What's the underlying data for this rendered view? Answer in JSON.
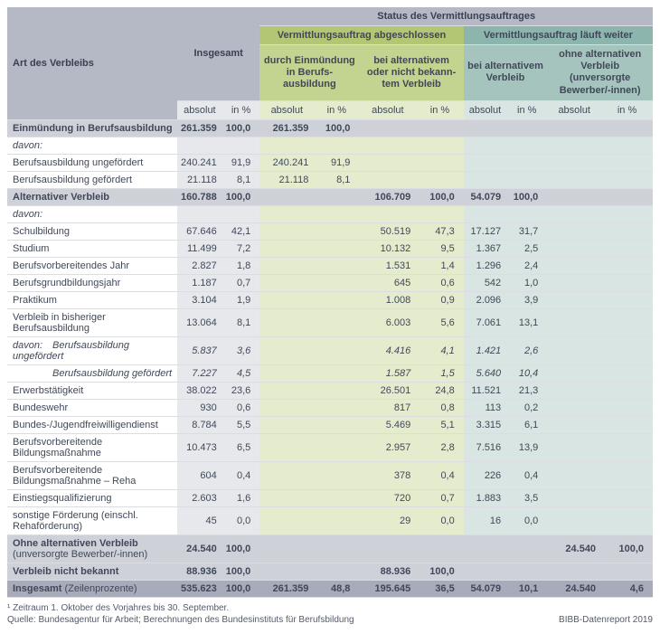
{
  "colors": {
    "gray_head": "#b5b8c5",
    "gray_sub": "#e7e8ec",
    "green_head": "#b2c674",
    "green_sub": "#c3d390",
    "green_cell": "#e5ecce",
    "teal_head": "#8cb5ae",
    "teal_sub": "#a6c4be",
    "teal_cell": "#d8e5e2",
    "lightgray": "#cfd1d9",
    "bottom": "#a8abb9",
    "text": "#404858"
  },
  "head": {
    "row_label": "Art des Verbleibs",
    "total": "Insgesamt",
    "status": "Status des Vermittlungsauftrages",
    "completed": "Vermittlungsauftrag abgeschlossen",
    "ongoing": "Vermittlungsauftrag läuft weiter",
    "col_a": "durch Einmündung in Berufs-\nausbildung",
    "col_b": "bei alternativem oder nicht bekann-\ntem Verbleib",
    "col_c": "bei alternativem Verbleib",
    "col_d": "ohne alternativen Verbleib (unversorgte Bewerber/-innen)",
    "abs": "absolut",
    "pct": "in %"
  },
  "rows": [
    {
      "label": "Einmündung in Berufsausbildung",
      "bold": true,
      "bg": "lightgray",
      "t_abs": "261.359",
      "t_pct": "100,0",
      "a_abs": "261.359",
      "a_pct": "100,0"
    },
    {
      "label": "davon:",
      "italic": true
    },
    {
      "label": "Berufsausbildung ungefördert",
      "t_abs": "240.241",
      "t_pct": "91,9",
      "a_abs": "240.241",
      "a_pct": "91,9"
    },
    {
      "label": "Berufsausbildung gefördert",
      "t_abs": "21.118",
      "t_pct": "8,1",
      "a_abs": "21.118",
      "a_pct": "8,1"
    },
    {
      "label": "Alternativer Verbleib",
      "bold": true,
      "bg": "lightgray",
      "t_abs": "160.788",
      "t_pct": "100,0",
      "b_abs": "106.709",
      "b_pct": "100,0",
      "c_abs": "54.079",
      "c_pct": "100,0"
    },
    {
      "label": "davon:",
      "italic": true
    },
    {
      "label": "Schulbildung",
      "t_abs": "67.646",
      "t_pct": "42,1",
      "b_abs": "50.519",
      "b_pct": "47,3",
      "c_abs": "17.127",
      "c_pct": "31,7"
    },
    {
      "label": "Studium",
      "t_abs": "11.499",
      "t_pct": "7,2",
      "b_abs": "10.132",
      "b_pct": "9,5",
      "c_abs": "1.367",
      "c_pct": "2,5"
    },
    {
      "label": "Berufsvorbereitendes Jahr",
      "t_abs": "2.827",
      "t_pct": "1,8",
      "b_abs": "1.531",
      "b_pct": "1,4",
      "c_abs": "1.296",
      "c_pct": "2,4"
    },
    {
      "label": "Berufsgrundbildungsjahr",
      "t_abs": "1.187",
      "t_pct": "0,7",
      "b_abs": "645",
      "b_pct": "0,6",
      "c_abs": "542",
      "c_pct": "1,0"
    },
    {
      "label": "Praktikum",
      "t_abs": "3.104",
      "t_pct": "1,9",
      "b_abs": "1.008",
      "b_pct": "0,9",
      "c_abs": "2.096",
      "c_pct": "3,9"
    },
    {
      "label": "Verbleib in bisheriger Berufsausbildung",
      "t_abs": "13.064",
      "t_pct": "8,1",
      "b_abs": "6.003",
      "b_pct": "5,6",
      "c_abs": "7.061",
      "c_pct": "13,1"
    },
    {
      "label": "davon:",
      "label2": "Berufsausbildung ungefördert",
      "italic": true,
      "indent": 2,
      "t_abs": "5.837",
      "t_pct": "3,6",
      "b_abs": "4.416",
      "b_pct": "4,1",
      "c_abs": "1.421",
      "c_pct": "2,6"
    },
    {
      "label": "",
      "label2": "Berufsausbildung gefördert",
      "italic": true,
      "indent": 2,
      "t_abs": "7.227",
      "t_pct": "4,5",
      "b_abs": "1.587",
      "b_pct": "1,5",
      "c_abs": "5.640",
      "c_pct": "10,4"
    },
    {
      "label": "Erwerbstätigkeit",
      "t_abs": "38.022",
      "t_pct": "23,6",
      "b_abs": "26.501",
      "b_pct": "24,8",
      "c_abs": "11.521",
      "c_pct": "21,3"
    },
    {
      "label": "Bundeswehr",
      "t_abs": "930",
      "t_pct": "0,6",
      "b_abs": "817",
      "b_pct": "0,8",
      "c_abs": "113",
      "c_pct": "0,2"
    },
    {
      "label": "Bundes-/Jugendfreiwilligendienst",
      "t_abs": "8.784",
      "t_pct": "5,5",
      "b_abs": "5.469",
      "b_pct": "5,1",
      "c_abs": "3.315",
      "c_pct": "6,1"
    },
    {
      "label": "Berufsvorbereitende Bildungsmaßnahme",
      "t_abs": "10.473",
      "t_pct": "6,5",
      "b_abs": "2.957",
      "b_pct": "2,8",
      "c_abs": "7.516",
      "c_pct": "13,9"
    },
    {
      "label": "Berufsvorbereitende Bildungsmaßnahme – Reha",
      "t_abs": "604",
      "t_pct": "0,4",
      "b_abs": "378",
      "b_pct": "0,4",
      "c_abs": "226",
      "c_pct": "0,4"
    },
    {
      "label": "Einstiegsqualifizierung",
      "t_abs": "2.603",
      "t_pct": "1,6",
      "b_abs": "720",
      "b_pct": "0,7",
      "c_abs": "1.883",
      "c_pct": "3,5"
    },
    {
      "label": "sonstige Förderung (einschl. Rehaförderung)",
      "t_abs": "45",
      "t_pct": "0,0",
      "b_abs": "29",
      "b_pct": "0,0",
      "c_abs": "16",
      "c_pct": "0,0"
    },
    {
      "label": "Ohne alternativen Verbleib",
      "sublabel": "(unversorgte Bewerber/-innen)",
      "bold": true,
      "bg": "lightgray",
      "t_abs": "24.540",
      "t_pct": "100,0",
      "d_abs": "24.540",
      "d_pct": "100,0"
    },
    {
      "label": "Verbleib nicht bekannt",
      "bold": true,
      "bg": "lightgray",
      "t_abs": "88.936",
      "t_pct": "100,0",
      "b_abs": "88.936",
      "b_pct": "100,0"
    },
    {
      "label": "Insgesamt",
      "label_suffix": " (Zeilenprozente)",
      "bold": true,
      "bg": "bottom",
      "t_abs": "535.623",
      "t_pct": "100,0",
      "a_abs": "261.359",
      "a_pct": "48,8",
      "b_abs": "195.645",
      "b_pct": "36,5",
      "c_abs": "54.079",
      "c_pct": "10,1",
      "d_abs": "24.540",
      "d_pct": "4,6"
    }
  ],
  "footnote": "¹ Zeitraum 1. Oktober des Vorjahres bis 30. September.",
  "source_left": "Quelle: Bundesagentur für Arbeit; Berechnungen des Bundesinstituts für Berufsbildung",
  "source_right": "BIBB-Datenreport 2019"
}
